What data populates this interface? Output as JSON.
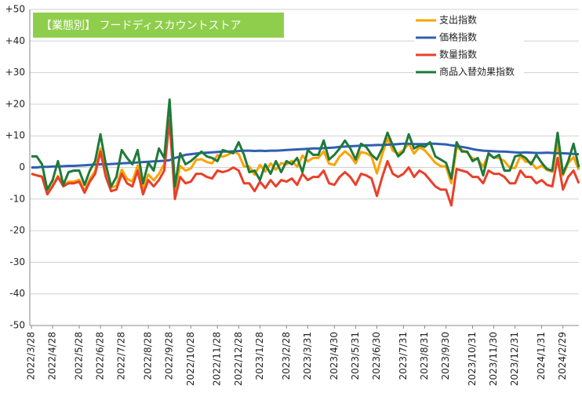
{
  "chart_data": {
    "type": "line",
    "title": "【業態別】 フードディスカウントストア",
    "categories": [
      "2022/3/28",
      null,
      null,
      null,
      "2022/4/28",
      null,
      null,
      null,
      null,
      "2022/5/28",
      null,
      null,
      null,
      "2022/6/28",
      null,
      null,
      null,
      "2022/7/28",
      null,
      null,
      null,
      null,
      "2022/8/28",
      null,
      null,
      null,
      "2022/9/28",
      null,
      null,
      null,
      "2022/10/28",
      null,
      null,
      null,
      null,
      "2022/11/28",
      null,
      null,
      null,
      "2022/12/28",
      null,
      null,
      null,
      "2023/1/28",
      null,
      null,
      null,
      null,
      "2023/2/28",
      null,
      null,
      null,
      "2023/3/31",
      null,
      null,
      null,
      null,
      "2023/4/30",
      null,
      null,
      null,
      "2023/5/31",
      null,
      null,
      null,
      "2023/6/30",
      null,
      null,
      null,
      null,
      "2023/7/31",
      null,
      null,
      null,
      "2023/8/31",
      null,
      null,
      null,
      "2023/9/30",
      null,
      null,
      null,
      null,
      "2023/10/31",
      null,
      null,
      null,
      "2023/11/30",
      null,
      null,
      null,
      "2023/12/31",
      null,
      null,
      null,
      null,
      "2024/1/31",
      null,
      null,
      null,
      "2024/2/29",
      null,
      null,
      null
    ],
    "series": [
      {
        "name": "支出指数",
        "color": "#ffa200",
        "values": [
          -2,
          -2.5,
          -2.8,
          -8.3,
          -5.7,
          -2.7,
          -5.6,
          -4.5,
          -4.5,
          -3.9,
          -7.3,
          -3.7,
          -1.1,
          6,
          -2,
          -6.4,
          -5.8,
          -0.7,
          -3.6,
          -4.5,
          0.6,
          -6.8,
          -2.2,
          -4.1,
          -2,
          1.1,
          17.3,
          -7,
          0.5,
          -1,
          -0.3,
          2.4,
          2.6,
          1.7,
          1.3,
          3.9,
          3.4,
          4,
          5.1,
          4.2,
          0.3,
          0.3,
          -2.3,
          0.8,
          -1.3,
          1.3,
          -0.7,
          1.4,
          1,
          2.1,
          0.2,
          3.8,
          1.9,
          3,
          3,
          5.1,
          1.2,
          0.8,
          3.5,
          5.1,
          3.7,
          1.3,
          4.9,
          4.5,
          3.5,
          -1.9,
          4.1,
          9.2,
          5.3,
          4.4,
          5.5,
          7.5,
          4.4,
          6.4,
          5.4,
          3.5,
          1.5,
          0.4,
          0.3,
          -5,
          6.3,
          5.5,
          4.7,
          2.8,
          2.5,
          0.3,
          4.2,
          3.1,
          3,
          2,
          -0.1,
          -0.2,
          3.7,
          1.8,
          1.7,
          -0.4,
          0.6,
          -0.8,
          -1.4,
          7.5,
          -2.5,
          1.4,
          3.3,
          -0.8
        ]
      },
      {
        "name": "価格指数",
        "color": "#2f5fb3",
        "values": [
          0,
          0,
          0.2,
          0.2,
          0.3,
          0.3,
          0.4,
          0.5,
          0.5,
          0.6,
          0.7,
          0.8,
          0.9,
          1,
          1,
          1.1,
          1.2,
          1.3,
          1.4,
          1.5,
          1.6,
          1.7,
          1.8,
          1.9,
          2,
          2.1,
          2.3,
          3,
          3.5,
          4,
          4.2,
          4.4,
          4.6,
          4.7,
          4.8,
          4.9,
          5,
          5,
          5.1,
          5.2,
          5.3,
          5.3,
          5.2,
          5.3,
          5.2,
          5.3,
          5.3,
          5.4,
          5.5,
          5.6,
          5.7,
          5.8,
          5.9,
          6,
          6,
          6.1,
          6.2,
          6.3,
          6.5,
          6.6,
          6.7,
          6.8,
          6.9,
          7,
          7,
          7.1,
          7.1,
          7.2,
          7.3,
          7.4,
          7.5,
          7.5,
          7.4,
          7.4,
          7.4,
          7.5,
          7.5,
          7.4,
          7.3,
          7,
          6.8,
          6.5,
          6.2,
          5.8,
          5.5,
          5.3,
          5.2,
          5.1,
          5,
          5,
          4.9,
          4.8,
          4.7,
          4.8,
          4.7,
          4.6,
          4.6,
          4.7,
          4.6,
          4.5,
          4.5,
          4.4,
          4.3,
          4.2
        ]
      },
      {
        "name": "数量指数",
        "color": "#e8402a",
        "values": [
          -2,
          -2.5,
          -3,
          -8.5,
          -6,
          -3,
          -6,
          -5,
          -5,
          -4.5,
          -8,
          -4.5,
          -2,
          5,
          -3,
          -7.5,
          -7,
          -2,
          -5,
          -6,
          -1,
          -8.5,
          -4,
          -6,
          -4,
          -1,
          15,
          -10,
          -3,
          -5,
          -4.5,
          -2,
          -2,
          -3,
          -3.5,
          -1,
          -1.5,
          -1,
          0,
          -1,
          -5,
          -5,
          -7.5,
          -4.5,
          -6.5,
          -4,
          -6,
          -4,
          -4.5,
          -3.5,
          -5.5,
          -2,
          -4,
          -3,
          -3,
          -1,
          -5,
          -5.5,
          -3,
          -1.5,
          -3,
          -5.5,
          -2,
          -2.5,
          -3.5,
          -9,
          -3,
          2,
          -2,
          -3,
          -2,
          0,
          -3,
          -1,
          -2,
          -4,
          -6,
          -7,
          -7,
          -12,
          -0.5,
          -1,
          -1.5,
          -3,
          -3,
          -5,
          -1,
          -2,
          -2,
          -3,
          -5,
          -5,
          -1,
          -3,
          -3,
          -5,
          -4,
          -5.5,
          -6,
          3,
          -7,
          -3,
          -1,
          -5
        ]
      },
      {
        "name": "商品入替効果指数",
        "color": "#1f7a3a",
        "values": [
          3.5,
          3.5,
          1,
          -7,
          -4,
          2,
          -5.5,
          -1.5,
          -1,
          -1,
          -5.5,
          -1,
          2,
          10.5,
          1,
          -6,
          -3,
          5.5,
          3,
          1,
          5.5,
          -5,
          1.5,
          -1,
          6,
          3,
          21.5,
          -6,
          4.5,
          1,
          2,
          3.5,
          5,
          3.5,
          3,
          2,
          5.5,
          5,
          4.5,
          8,
          4,
          -1.5,
          -1,
          -4,
          1,
          -2,
          2,
          -1.5,
          2,
          1,
          3,
          -1.5,
          5.5,
          4,
          4,
          8.5,
          2.5,
          4,
          6,
          8.5,
          6,
          2.5,
          7.5,
          6.5,
          4,
          2.5,
          6,
          11,
          7,
          3.5,
          5,
          10.5,
          6,
          7,
          6.5,
          8,
          3.5,
          2.5,
          1.5,
          -3.5,
          8,
          5,
          5,
          2,
          3,
          -2.5,
          4.5,
          3,
          4,
          -1,
          -1,
          3.5,
          4,
          3,
          1,
          4,
          1.5,
          -0.5,
          -1,
          11,
          -2,
          2,
          7.5,
          0
        ]
      }
    ],
    "ylim": [
      -50,
      50
    ],
    "yticks": [
      {
        "value": 50,
        "label": "+50"
      },
      {
        "value": 40,
        "label": "+40"
      },
      {
        "value": 30,
        "label": "+30"
      },
      {
        "value": 20,
        "label": "+20"
      },
      {
        "value": 10,
        "label": "+10"
      },
      0,
      -10,
      -20,
      -30,
      -40,
      -50
    ],
    "grid": true,
    "legend": "upper right"
  }
}
